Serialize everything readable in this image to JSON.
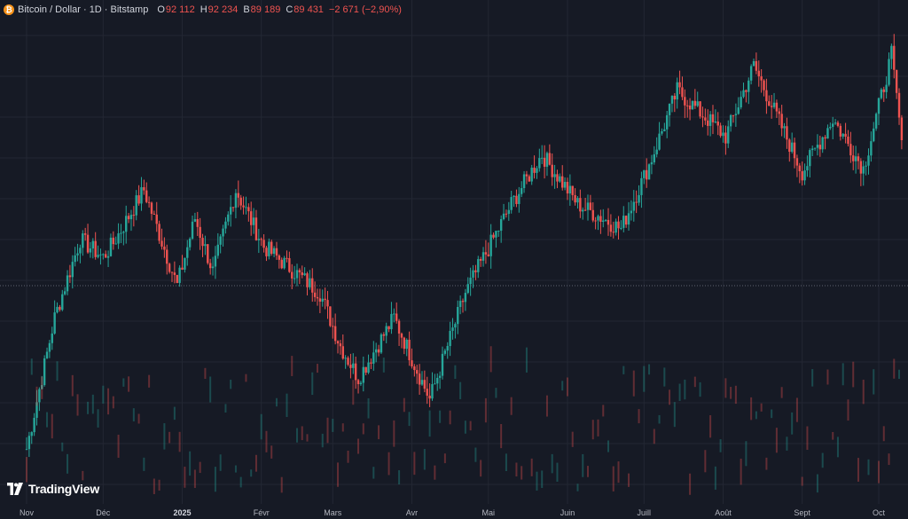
{
  "header": {
    "coin_icon_glyph": "₿",
    "symbol": "Bitcoin / Dollar · 1D · Bitstamp",
    "open_label": "O",
    "open_value": "92 112",
    "high_label": "H",
    "high_value": "92 234",
    "low_label": "B",
    "low_value": "89 189",
    "close_label": "C",
    "close_value": "89 431",
    "change": "−2 671 (−2,90%)"
  },
  "watermark": {
    "text": "TradingView",
    "icon": "tradingview-logo-icon"
  },
  "colors": {
    "background": "#161a25",
    "up": "#26a69a",
    "down": "#ef5350",
    "grid": "#232733",
    "crosshair": "#5d6170"
  },
  "time_axis": [
    {
      "label": "Nov",
      "bold": false
    },
    {
      "label": "Déc",
      "bold": false
    },
    {
      "label": "2025",
      "bold": true
    },
    {
      "label": "Févr",
      "bold": false
    },
    {
      "label": "Mars",
      "bold": false
    },
    {
      "label": "Avr",
      "bold": false
    },
    {
      "label": "Mai",
      "bold": false
    },
    {
      "label": "Juin",
      "bold": false
    },
    {
      "label": "Juill",
      "bold": false
    },
    {
      "label": "Août",
      "bold": false
    },
    {
      "label": "Sept",
      "bold": false
    },
    {
      "label": "Oct",
      "bold": false
    }
  ],
  "chart_data": {
    "type": "candlestick",
    "series": "Bitcoin / Dollar",
    "interval": "1D",
    "exchange": "Bitstamp",
    "last_bar": {
      "open": 92112,
      "high": 92234,
      "low": 89189,
      "close": 89431
    },
    "approx_closes": [
      {
        "date": "2024-11-01",
        "close": 69500
      },
      {
        "date": "2024-11-12",
        "close": 88000
      },
      {
        "date": "2024-11-22",
        "close": 99000
      },
      {
        "date": "2024-12-01",
        "close": 96500
      },
      {
        "date": "2024-12-05",
        "close": 98500
      },
      {
        "date": "2024-12-17",
        "close": 106000
      },
      {
        "date": "2024-12-30",
        "close": 92500
      },
      {
        "date": "2025-01-06",
        "close": 102000
      },
      {
        "date": "2025-01-13",
        "close": 94500
      },
      {
        "date": "2025-01-22",
        "close": 106000
      },
      {
        "date": "2025-02-02",
        "close": 98000
      },
      {
        "date": "2025-02-24",
        "close": 91500
      },
      {
        "date": "2025-03-04",
        "close": 84000
      },
      {
        "date": "2025-03-11",
        "close": 79500
      },
      {
        "date": "2025-03-25",
        "close": 88000
      },
      {
        "date": "2025-04-08",
        "close": 76500
      },
      {
        "date": "2025-04-22",
        "close": 91500
      },
      {
        "date": "2025-05-10",
        "close": 104000
      },
      {
        "date": "2025-05-22",
        "close": 111000
      },
      {
        "date": "2025-06-05",
        "close": 104000
      },
      {
        "date": "2025-06-22",
        "close": 100500
      },
      {
        "date": "2025-07-03",
        "close": 109500
      },
      {
        "date": "2025-07-14",
        "close": 120000
      },
      {
        "date": "2025-08-02",
        "close": 113500
      },
      {
        "date": "2025-08-13",
        "close": 123500
      },
      {
        "date": "2025-09-01",
        "close": 108500
      },
      {
        "date": "2025-09-13",
        "close": 116000
      },
      {
        "date": "2025-09-25",
        "close": 109000
      },
      {
        "date": "2025-10-06",
        "close": 125000
      },
      {
        "date": "2025-10-10",
        "close": 113000
      }
    ],
    "price_line": 92500,
    "grid": true
  }
}
